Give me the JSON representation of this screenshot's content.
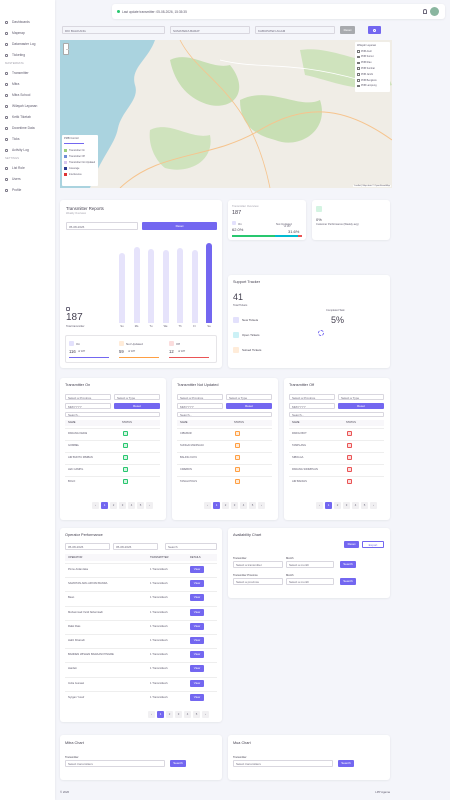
{
  "sidebar": {
    "main": [
      "Dashboards",
      "Mapmap",
      "Datamaster Log",
      "Ticketing"
    ],
    "masterdata_title": "MASTERDATA",
    "masterdata": [
      "Transmitter",
      "Mitra",
      "Mitra School",
      "Wilayah Layanan",
      "Ketik Tiketab",
      "Downtime Data",
      "Ticks",
      "Activity Log"
    ],
    "settings_title": "SETTINGS",
    "settings": [
      "List Role",
      "Users",
      "Profile"
    ]
  },
  "topbar": {
    "last_update": "Last update transmitter: 05-08-2026, 15:35:35"
  },
  "filters": {
    "selects": [
      "DKI BALIKANG",
      "SUMATERA BARAT",
      "KABUPATEN AGAM"
    ],
    "reset": "Reset"
  },
  "map": {
    "legend_title": "PMB Control",
    "legend": [
      "Transmitter On",
      "Transmitter Off",
      "Transmitter Not Updated",
      "Coverage",
      "Interference"
    ],
    "layers_title": "Wilayah Layanan",
    "layers": [
      "PNB Aceh",
      "PNB Sumut",
      "PNB Riau",
      "PNB Sumbar",
      "PNB Jambi",
      "PNB Bengkulu",
      "PNB Lampung"
    ],
    "attribution": "Leaflet | Map data © OpenStreetMap"
  },
  "reports": {
    "title": "Transmitter Reports",
    "subtitle": "Weekly Overview",
    "date": "05-08-2026",
    "reset": "Reset",
    "chart": {
      "type": "bar",
      "categories": [
        "Su",
        "Mo",
        "Tu",
        "We",
        "Th",
        "Fr",
        "Sa"
      ],
      "values": [
        163,
        178,
        174,
        171,
        176,
        170,
        187
      ]
    },
    "total": "187",
    "total_label": "Total transmitter",
    "stats": [
      {
        "label": "On",
        "value": 116,
        "of": "of 187"
      },
      {
        "label": "Not Updated",
        "value": 59,
        "of": "of 187"
      },
      {
        "label": "Off",
        "value": 12,
        "of": "of 187"
      }
    ]
  },
  "overview": {
    "title": "Transmitter Overview",
    "total": "187",
    "on_label": "On",
    "on_pct": "62.0%",
    "nu_label": "Not Updated",
    "nu_of": "of 187",
    "nu_pct": "31.6%"
  },
  "performance_card": {
    "value": "0%",
    "label": "Customer Performance (Weekly avg)"
  },
  "support": {
    "title": "Support Tracker",
    "total": "41",
    "total_label": "Total Tickets",
    "rows": [
      "New Tickets",
      "Open Tickets",
      "Solved Tickets"
    ],
    "completed_label": "Completed Task",
    "completed": "5%"
  },
  "lists": [
    {
      "title": "Transmitter On",
      "province": "Select a Province",
      "type": "Select a Type",
      "date": "MM/YYYY",
      "reset": "Reset",
      "search": "Search...",
      "headers": [
        "NAME",
        "STATUS"
      ],
      "rows": [
        "PADANG KEDAI",
        "GOMBEL",
        "AIR BUNTU RIMBAN",
        "LEK CAMPIL",
        "BOLO"
      ],
      "pages": [
        "‹",
        "1",
        "2",
        "3",
        "4",
        "5",
        "›"
      ]
    },
    {
      "title": "Transmitter Not Updated",
      "province": "Select a Province",
      "type": "Select a Type",
      "date": "MM/YYYY",
      "reset": "Reset",
      "search": "Search...",
      "headers": [
        "NAME",
        "STATUS"
      ],
      "rows": [
        "CIBUBUR",
        "SUNGAI MANINJAU",
        "BALING KAYU",
        "CIREBON",
        "TANAH POLIS"
      ],
      "pages": [
        "‹",
        "1",
        "2",
        "3",
        "4",
        "5",
        "›"
      ]
    },
    {
      "title": "Transmitter Off",
      "province": "Select a Province",
      "type": "Select a Type",
      "date": "MM/YYYY",
      "reset": "Reset",
      "search": "Search...",
      "headers": [
        "NAME",
        "STATUS"
      ],
      "rows": [
        "PARIGI BOT",
        "TAMPLANG",
        "SIBOLGA",
        "PADANG SIDIMPUAN",
        "AIR BANGIS"
      ],
      "pages": [
        "‹",
        "1",
        "2",
        "3",
        "4",
        "5",
        "›"
      ]
    }
  ],
  "operators": {
    "title": "Operator Performance",
    "date_from": "05-08-2026",
    "date_to": "05-08-2026",
    "search": "Search",
    "headers": [
      "OPERATOR",
      "TRANSMITTER",
      "DETAILS"
    ],
    "rows": [
      [
        "Pinnu Ardan Eka",
        "1 Transmitter/s",
        "View"
      ],
      [
        "SAMOTAN ARG ARYAM BANDA",
        "1 Transmitter/s",
        "View"
      ],
      [
        "Bean",
        "1 Transmitter/s",
        "View"
      ],
      [
        "Muhammad Yardi Noberniadi",
        "1 Transmitter/s",
        "View"
      ],
      [
        "Rafel Rais",
        "1 Transmitter/s",
        "View"
      ],
      [
        "Hafiz Khairudi",
        "1 Transmitter/s",
        "View"
      ],
      [
        "BADDEN WISLEN BARAANI PINGRE",
        "1 Transmitter/s",
        "View"
      ],
      [
        "Hardeti",
        "1 Transmitter/s",
        "View"
      ],
      [
        "Indra Gunawi",
        "1 Transmitter/s",
        "View"
      ],
      [
        "Nyrgan Yusuf",
        "1 Transmitter/s",
        "View"
      ]
    ],
    "pages": [
      "‹",
      "1",
      "2",
      "3",
      "4",
      "5",
      "›"
    ]
  },
  "availability": {
    "title": "Availability Chart",
    "reset": "Reset",
    "export": "Export",
    "transmitter_label": "Transmitter",
    "transmitter_select": "Select a transmitter",
    "month_label": "Month",
    "month_select": "Select a month",
    "province_label": "Transmitter Province",
    "province_select": "Select a province",
    "search": "Search"
  },
  "mitra": [
    {
      "title": "Mitra Chart",
      "label": "Transmitter",
      "select": "Select transmitters",
      "search": "Search"
    },
    {
      "title": "Mua Chart",
      "label": "Transmitter",
      "select": "Select transmitters",
      "search": "Search"
    }
  ],
  "footer": {
    "left": "© 2026",
    "right": "LPP Agama"
  }
}
